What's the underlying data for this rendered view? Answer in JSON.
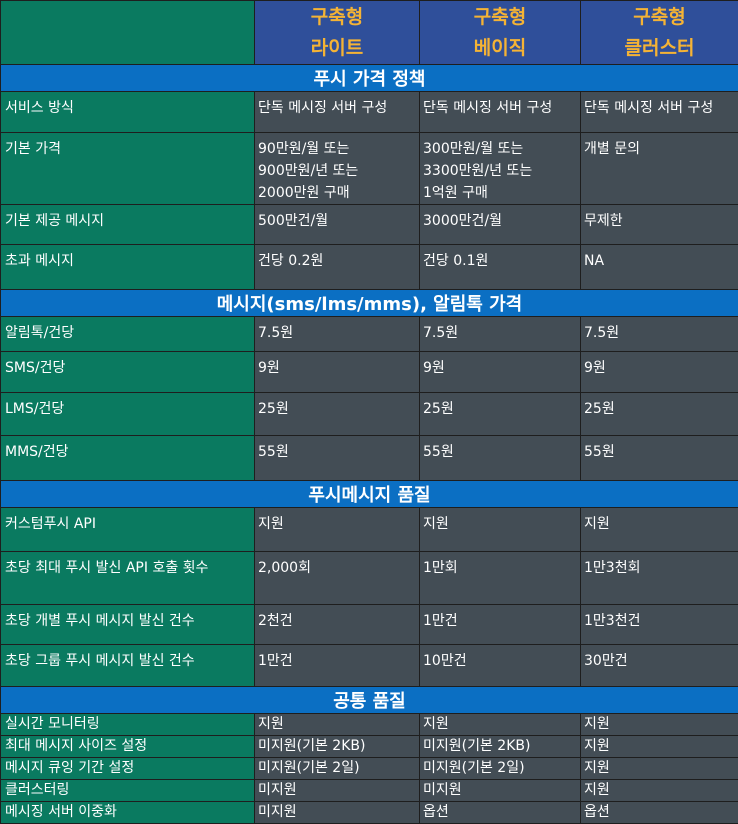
{
  "header": {
    "plans": [
      {
        "line1": "구축형",
        "line2": "라이트"
      },
      {
        "line1": "구축형",
        "line2": "베이직"
      },
      {
        "line1": "구축형",
        "line2": "클러스터"
      }
    ]
  },
  "sections": [
    {
      "title": "푸시 가격 정책",
      "rows": [
        {
          "label": "서비스 방식",
          "values": [
            [
              "단독 메시징 서버 구성"
            ],
            [
              "단독 메시징 서버 구성"
            ],
            [
              "단독 메시징 서버 구성"
            ]
          ]
        },
        {
          "label": "기본 가격",
          "values": [
            [
              "90만원/월 또는",
              "900만원/년 또는",
              "2000만원 구매"
            ],
            [
              "300만원/월 또는",
              "3300만원/년 또는",
              "1억원 구매"
            ],
            [
              "개별 문의"
            ]
          ]
        },
        {
          "label": "기본 제공 메시지",
          "values": [
            [
              "500만건/월"
            ],
            [
              "3000만건/월"
            ],
            [
              "무제한"
            ]
          ]
        },
        {
          "label": "초과 메시지",
          "values": [
            [
              "건당 0.2원"
            ],
            [
              "건당 0.1원"
            ],
            [
              "NA"
            ]
          ]
        }
      ]
    },
    {
      "title": "메시지(sms/lms/mms), 알림톡 가격",
      "rows": [
        {
          "label": "알림톡/건당",
          "values": [
            [
              "7.5원"
            ],
            [
              "7.5원"
            ],
            [
              "7.5원"
            ]
          ]
        },
        {
          "label": "SMS/건당",
          "values": [
            [
              "9원"
            ],
            [
              "9원"
            ],
            [
              "9원"
            ]
          ]
        },
        {
          "label": "LMS/건당",
          "values": [
            [
              "25원"
            ],
            [
              "25원"
            ],
            [
              "25원"
            ]
          ]
        },
        {
          "label": "MMS/건당",
          "values": [
            [
              "55원"
            ],
            [
              "55원"
            ],
            [
              "55원"
            ]
          ]
        }
      ]
    },
    {
      "title": "푸시메시지 품질",
      "rows": [
        {
          "label": "커스텀푸시 API",
          "values": [
            [
              "지원"
            ],
            [
              "지원"
            ],
            [
              "지원"
            ]
          ]
        },
        {
          "label": "초당 최대 푸시 발신  API 호출 횟수",
          "values": [
            [
              "2,000회"
            ],
            [
              "1만회"
            ],
            [
              "1만3천회"
            ]
          ]
        },
        {
          "label": "초당 개별 푸시 메시지 발신 건수",
          "values": [
            [
              "2천건"
            ],
            [
              "1만건"
            ],
            [
              "1만3천건"
            ]
          ]
        },
        {
          "label": "초당 그룹 푸시 메시지 발신 건수",
          "values": [
            [
              "1만건"
            ],
            [
              "10만건"
            ],
            [
              "30만건"
            ]
          ]
        }
      ]
    },
    {
      "title": "공통 품질",
      "rows": [
        {
          "label": "실시간 모니터링",
          "values": [
            [
              "지원"
            ],
            [
              "지원"
            ],
            [
              "지원"
            ]
          ]
        },
        {
          "label": "최대 메시지 사이즈 설정",
          "values": [
            [
              "미지원(기본 2KB)"
            ],
            [
              "미지원(기본 2KB)"
            ],
            [
              "지원"
            ]
          ]
        },
        {
          "label": "메시지 큐잉 기간 설정",
          "values": [
            [
              "미지원(기본 2일)"
            ],
            [
              "미지원(기본 2일)"
            ],
            [
              "지원"
            ]
          ]
        },
        {
          "label": "클러스터링",
          "values": [
            [
              "미지원"
            ],
            [
              "미지원"
            ],
            [
              "지원"
            ]
          ]
        },
        {
          "label": "메시징 서버 이중화",
          "values": [
            [
              "미지원"
            ],
            [
              "옵션"
            ],
            [
              "옵션"
            ]
          ]
        }
      ]
    }
  ]
}
